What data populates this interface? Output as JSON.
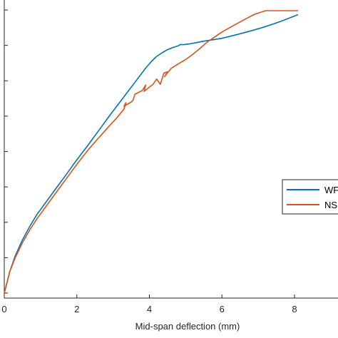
{
  "chart_data": {
    "type": "line",
    "title": "",
    "xlabel": "Mid-span deflection (mm)",
    "ylabel": "",
    "xlim": [
      0,
      9
    ],
    "ylim": [
      0,
      8
    ],
    "xticks": [
      0,
      2,
      4,
      6,
      8
    ],
    "xtick_labels": [
      "0",
      "2",
      "4",
      "6",
      "8"
    ],
    "yticks": [
      0,
      1,
      2,
      3,
      4,
      5,
      6,
      7,
      8
    ],
    "grid": false,
    "legend_position": "right",
    "series": [
      {
        "name": "WF",
        "color": "#0072BD",
        "x": [
          0,
          0.15,
          0.3,
          0.5,
          0.7,
          0.9,
          1.1,
          1.3,
          1.5,
          1.7,
          1.9,
          2.1,
          2.3,
          2.5,
          2.7,
          2.9,
          3.1,
          3.3,
          3.5,
          3.7,
          3.9,
          4.05,
          4.2,
          4.35,
          4.5,
          4.65,
          4.8,
          4.85,
          4.95,
          5.1,
          5.3,
          5.5,
          5.7,
          6.0,
          6.4,
          6.8,
          7.2,
          7.6,
          8.1
        ],
        "y": [
          0,
          0.6,
          1.05,
          1.5,
          1.88,
          2.22,
          2.5,
          2.78,
          3.06,
          3.34,
          3.63,
          3.9,
          4.17,
          4.45,
          4.73,
          5.01,
          5.28,
          5.55,
          5.82,
          6.09,
          6.36,
          6.54,
          6.69,
          6.79,
          6.88,
          6.94,
          6.99,
          7.02,
          7.02,
          7.04,
          7.08,
          7.12,
          7.15,
          7.2,
          7.3,
          7.41,
          7.53,
          7.67,
          7.87
        ]
      },
      {
        "name": "NS",
        "color": "#D95319",
        "x": [
          0,
          0.15,
          0.3,
          0.5,
          0.7,
          0.9,
          1.1,
          1.3,
          1.5,
          1.7,
          1.9,
          2.1,
          2.3,
          2.5,
          2.7,
          2.9,
          3.1,
          3.3,
          3.35,
          3.3,
          3.5,
          3.55,
          3.6,
          3.8,
          3.9,
          3.85,
          4.1,
          4.2,
          4.3,
          4.4,
          4.5,
          4.42,
          4.6,
          4.8,
          5.0,
          5.2,
          5.4,
          5.6,
          5.75,
          6.0,
          6.3,
          6.6,
          6.9,
          7.2,
          7.6,
          8.1
        ],
        "y": [
          0,
          0.6,
          1.0,
          1.42,
          1.78,
          2.1,
          2.38,
          2.66,
          2.94,
          3.22,
          3.5,
          3.77,
          4.03,
          4.27,
          4.5,
          4.73,
          4.95,
          5.2,
          5.38,
          5.28,
          5.4,
          5.45,
          5.62,
          5.72,
          5.88,
          5.7,
          5.9,
          6.05,
          5.9,
          6.22,
          6.25,
          6.12,
          6.35,
          6.48,
          6.6,
          6.75,
          6.92,
          7.1,
          7.2,
          7.38,
          7.55,
          7.72,
          7.88,
          7.98,
          7.98,
          7.98
        ]
      }
    ]
  }
}
